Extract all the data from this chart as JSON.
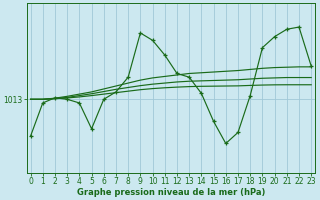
{
  "title": "Graphe pression niveau de la mer (hPa)",
  "bg_color": "#cce8f0",
  "line_color": "#1a6b1a",
  "grid_color": "#a0c8d8",
  "ylabel_value": 1013,
  "x_ticks": [
    0,
    1,
    2,
    3,
    4,
    5,
    6,
    7,
    8,
    9,
    10,
    11,
    12,
    13,
    14,
    15,
    16,
    17,
    18,
    19,
    20,
    21,
    22,
    23
  ],
  "series1": [
    1008.0,
    1012.5,
    1013.2,
    1013.0,
    1012.5,
    1009.0,
    1013.0,
    1014.0,
    1016.0,
    1022.0,
    1021.0,
    1019.0,
    1016.5,
    1016.0,
    1013.8,
    1010.0,
    1007.0,
    1008.5,
    1013.5,
    1020.0,
    1021.5,
    1022.5,
    1022.8,
    1017.5
  ],
  "series2": [
    1013.0,
    1013.0,
    1013.15,
    1013.4,
    1013.7,
    1014.0,
    1014.4,
    1014.8,
    1015.2,
    1015.6,
    1015.9,
    1016.1,
    1016.3,
    1016.5,
    1016.6,
    1016.7,
    1016.8,
    1016.9,
    1017.05,
    1017.2,
    1017.3,
    1017.35,
    1017.4,
    1017.4
  ],
  "series3": [
    1013.0,
    1013.0,
    1013.1,
    1013.25,
    1013.5,
    1013.75,
    1014.05,
    1014.35,
    1014.6,
    1014.85,
    1015.05,
    1015.2,
    1015.35,
    1015.45,
    1015.5,
    1015.55,
    1015.6,
    1015.65,
    1015.75,
    1015.85,
    1015.9,
    1015.95,
    1015.95,
    1015.95
  ],
  "series4": [
    1013.0,
    1013.0,
    1013.08,
    1013.18,
    1013.32,
    1013.5,
    1013.7,
    1013.9,
    1014.1,
    1014.3,
    1014.45,
    1014.56,
    1014.65,
    1014.72,
    1014.76,
    1014.78,
    1014.8,
    1014.82,
    1014.88,
    1014.93,
    1014.96,
    1014.97,
    1014.97,
    1014.97
  ],
  "ylim_min": 1003.0,
  "ylim_max": 1026.0,
  "tick_fontsize": 5.5,
  "title_fontsize": 6.0
}
